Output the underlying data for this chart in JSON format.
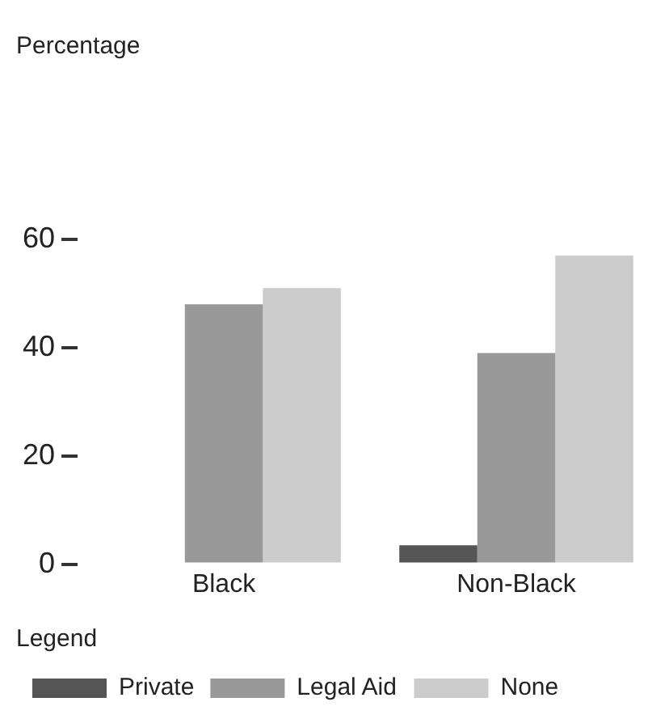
{
  "chart_data": {
    "type": "bar",
    "annotations": [
      "Percentage"
    ],
    "legend_title": "Legend",
    "categories": [
      "Black",
      "Non-Black"
    ],
    "series": [
      {
        "name": "Private",
        "color": "#555555",
        "values": [
          0,
          3.5
        ]
      },
      {
        "name": "Legal Aid",
        "color": "#999999",
        "values": [
          48,
          39
        ]
      },
      {
        "name": "None",
        "color": "#cccccc",
        "values": [
          51,
          57
        ]
      }
    ],
    "ylim": [
      0,
      60
    ],
    "yticks": [
      0,
      20,
      40,
      60
    ],
    "grid": false,
    "legend": "bottom"
  }
}
